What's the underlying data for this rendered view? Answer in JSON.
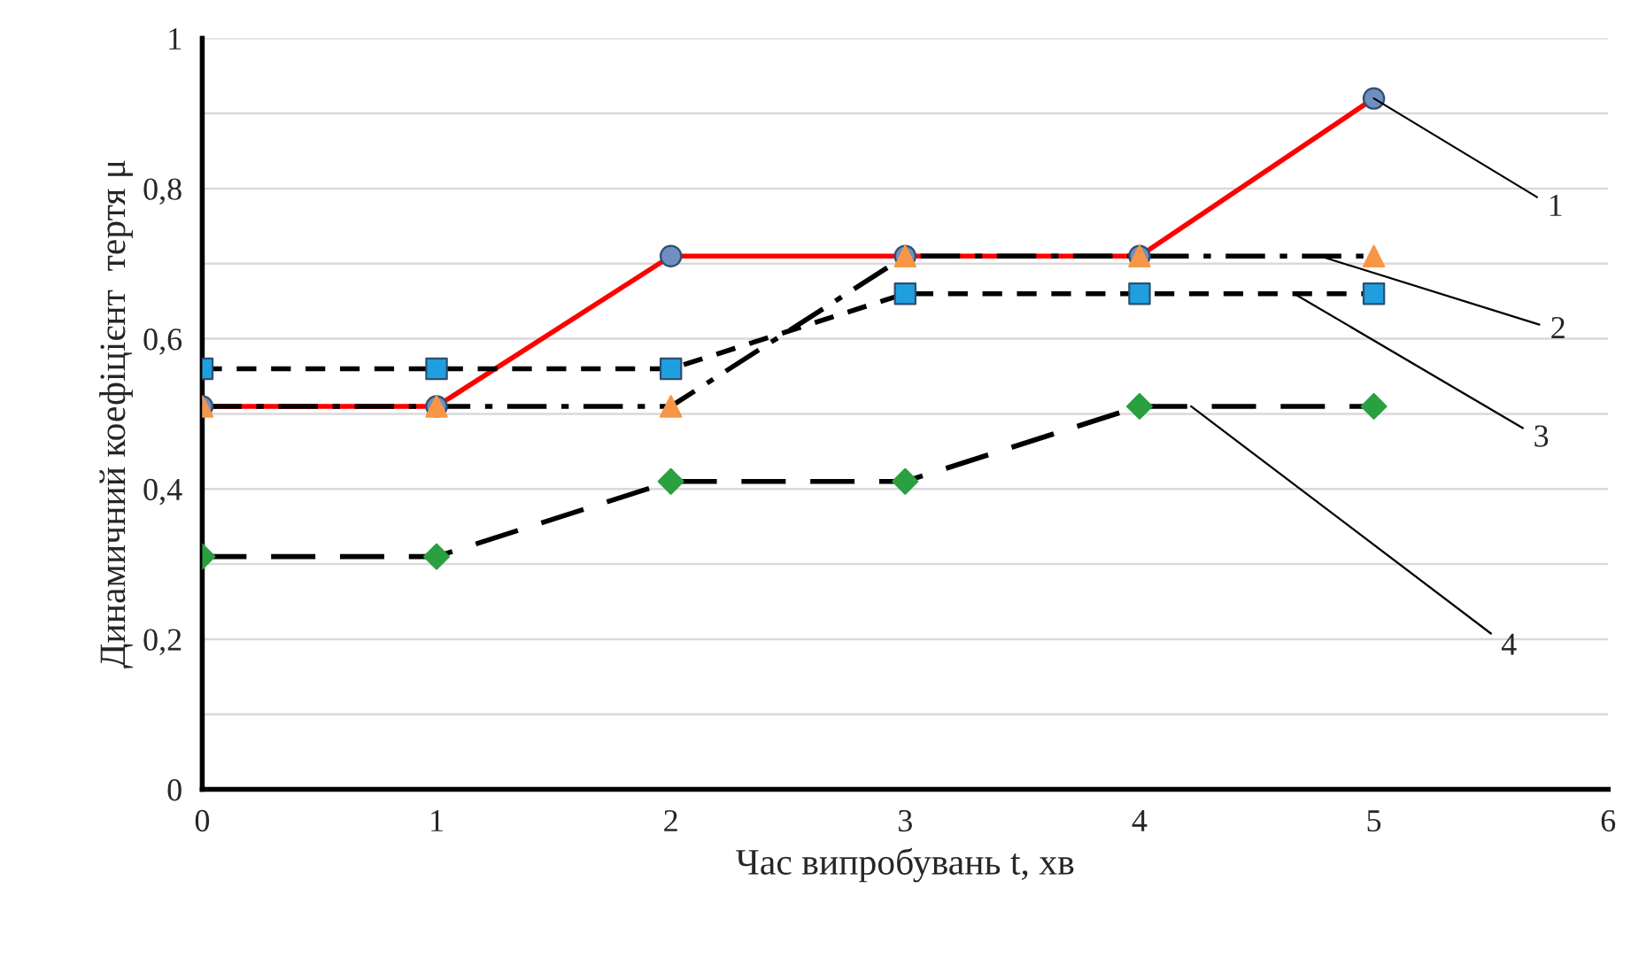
{
  "chart_data": {
    "type": "line",
    "xlabel": "Час випробувань t, хв",
    "ylabel": "Динамичний коефіцієнт  тертя μ",
    "x": [
      0,
      1,
      2,
      3,
      4,
      5
    ],
    "series": [
      {
        "color": "#ff0000",
        "colors": [
          "#6f8fc0",
          "#6f8fc0",
          "#6f8fc0",
          "#6f8fc0",
          "#6f8fc0",
          "#6f8fc0"
        ],
        "marker": "circle",
        "line_style": "solid",
        "values": [
          0.51,
          0.51,
          0.71,
          0.71,
          0.71,
          0.92
        ]
      },
      {
        "color": "#000000",
        "colors": [
          "#f79646",
          "#f79646",
          "#f79646",
          "#f79646",
          "#f79646",
          "#f79646"
        ],
        "marker": "triangle",
        "line_style": "dashdot",
        "values": [
          0.51,
          0.51,
          0.51,
          0.71,
          0.71,
          0.71
        ]
      },
      {
        "color": "#000000",
        "colors": [
          "#1f9fe0",
          "#1f9fe0",
          "#1f9fe0",
          "#1f9fe0",
          "#1f9fe0",
          "#1f9fe0"
        ],
        "marker": "square",
        "line_style": "dashed",
        "values": [
          0.56,
          0.56,
          0.56,
          0.66,
          0.66,
          0.66
        ]
      },
      {
        "color": "#000000",
        "colors": [
          "#2aa040",
          "#2aa040",
          "#2aa040",
          "#2aa040",
          "#2aa040",
          "#2aa040"
        ],
        "marker": "diamond",
        "line_style": "longdash",
        "values": [
          0.31,
          0.31,
          0.41,
          0.41,
          0.51,
          0.51
        ]
      }
    ],
    "annotations": [
      {
        "text": "1",
        "x": 5,
        "y": 0.92
      },
      {
        "text": "2",
        "x": 4.77,
        "y": 0.71
      },
      {
        "text": "3",
        "x": 4.66,
        "y": 0.66
      },
      {
        "text": "4",
        "x": 4.22,
        "y": 0.51
      }
    ],
    "xlim": [
      0,
      6
    ],
    "xticks": [
      0,
      1,
      2,
      3,
      4,
      5,
      6
    ],
    "ylim": [
      0,
      1
    ],
    "yticks": [
      0,
      {
        "value": 0.1,
        "label": null
      },
      {
        "value": 0.2,
        "label": "0,2"
      },
      {
        "value": 0.3,
        "label": null
      },
      {
        "value": 0.4,
        "label": "0,4"
      },
      {
        "value": 0.5,
        "label": null
      },
      {
        "value": 0.6,
        "label": "0,6"
      },
      {
        "value": 0.7,
        "label": null
      },
      {
        "value": 0.8,
        "label": "0,8"
      },
      {
        "value": 0.9,
        "label": null
      },
      1
    ],
    "grid": "y",
    "legend": false
  }
}
